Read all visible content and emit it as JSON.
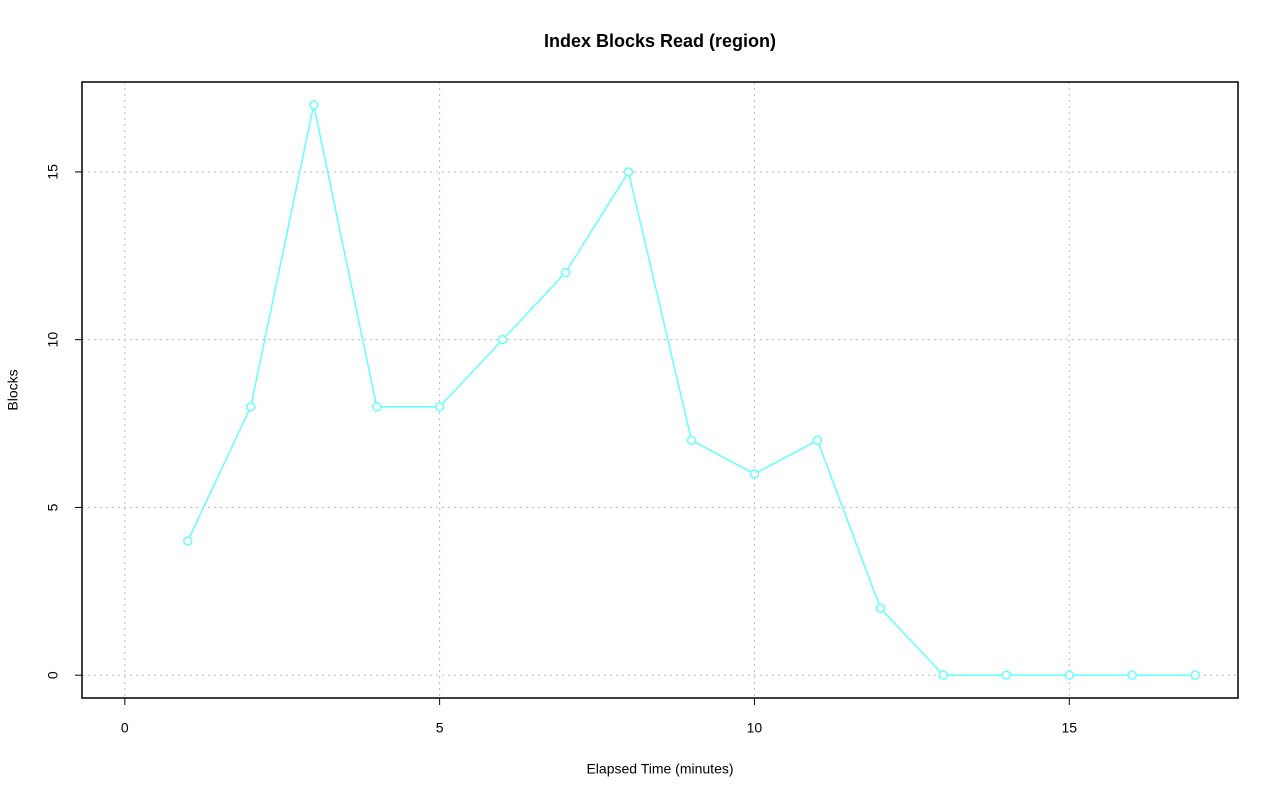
{
  "chart_data": {
    "type": "line",
    "title": "Index Blocks Read (region)",
    "x_label": "Elapsed Time (minutes)",
    "y_label": "Blocks",
    "x": [
      1,
      2,
      3,
      4,
      5,
      6,
      7,
      8,
      9,
      10,
      11,
      12,
      13,
      14,
      15,
      16,
      17
    ],
    "series": [
      {
        "color": "#66ffff",
        "values": [
          4,
          8,
          17,
          8,
          8,
          10,
          12,
          15,
          7,
          6,
          7,
          2,
          0,
          0,
          0,
          0,
          0
        ]
      }
    ],
    "xlim": [
      -0.68,
      17.68
    ],
    "ylim": [
      -0.68,
      17.68
    ],
    "xticks": [
      0,
      5,
      10,
      15
    ],
    "yticks": [
      0,
      5,
      10,
      15
    ],
    "grid": true
  }
}
